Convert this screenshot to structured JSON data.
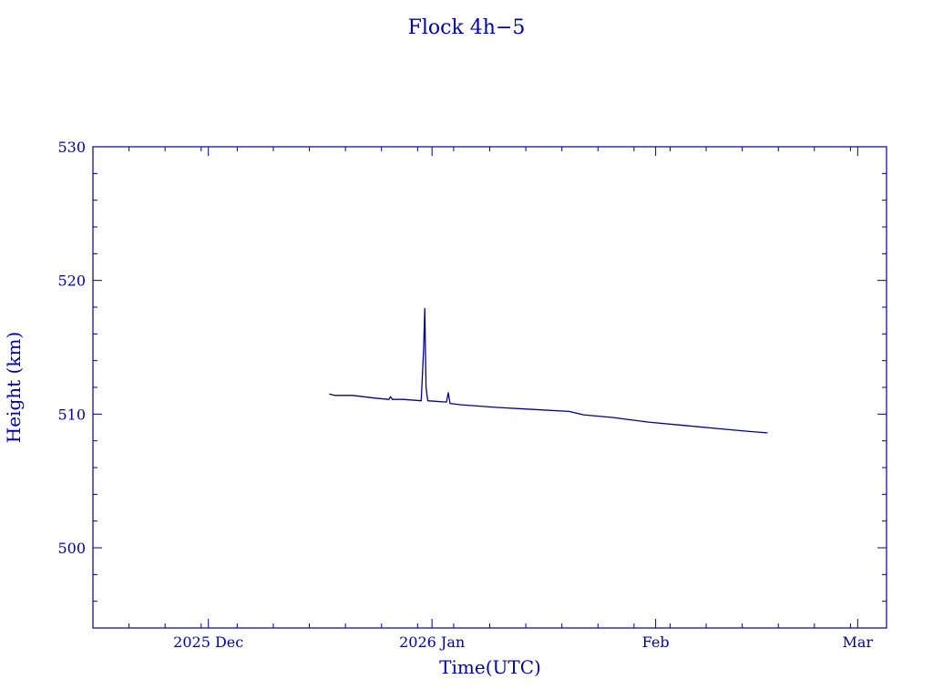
{
  "chart_data": {
    "type": "line",
    "title": "Flock 4h−5",
    "xlabel": "Time(UTC)",
    "ylabel": "Height (km)",
    "x_type": "date",
    "xlim": [
      "2025-11-15",
      "2026-03-05"
    ],
    "ylim": [
      494,
      530
    ],
    "y_ticks": [
      500,
      510,
      520,
      530
    ],
    "y_minor_step": 2,
    "x_ticks": [
      {
        "date": "2025-12-01",
        "label": "2025 Dec"
      },
      {
        "date": "2026-01-01",
        "label": "2026 Jan"
      },
      {
        "date": "2026-02-01",
        "label": "Feb"
      },
      {
        "date": "2026-03-01",
        "label": "Mar"
      }
    ],
    "x_minor_step_days": 5,
    "grid": false,
    "series": [
      {
        "color": "#000088",
        "points": [
          [
            "2025-12-17T18:00",
            511.5
          ],
          [
            "2025-12-18T12:00",
            511.4
          ],
          [
            "2025-12-21T00:00",
            511.4
          ],
          [
            "2025-12-24T00:00",
            511.2
          ],
          [
            "2025-12-26T00:00",
            511.1
          ],
          [
            "2025-12-26T06:00",
            511.3
          ],
          [
            "2025-12-26T12:00",
            511.1
          ],
          [
            "2025-12-28T00:00",
            511.1
          ],
          [
            "2025-12-30T12:00",
            511.0
          ],
          [
            "2025-12-30T20:00",
            514.8
          ],
          [
            "2025-12-31T00:00",
            517.9
          ],
          [
            "2025-12-31T04:00",
            512.0
          ],
          [
            "2025-12-31T10:00",
            511.0
          ],
          [
            "2026-01-03T00:00",
            510.9
          ],
          [
            "2026-01-03T06:00",
            511.6
          ],
          [
            "2026-01-03T12:00",
            510.8
          ],
          [
            "2026-01-05T00:00",
            510.7
          ],
          [
            "2026-01-10T00:00",
            510.5
          ],
          [
            "2026-01-15T00:00",
            510.35
          ],
          [
            "2026-01-20T00:00",
            510.2
          ],
          [
            "2026-01-22T00:00",
            509.95
          ],
          [
            "2026-01-26T00:00",
            509.75
          ],
          [
            "2026-01-31T00:00",
            509.4
          ],
          [
            "2026-02-05T00:00",
            509.15
          ],
          [
            "2026-02-10T00:00",
            508.9
          ],
          [
            "2026-02-14T00:00",
            508.7
          ],
          [
            "2026-02-16T12:00",
            508.6
          ]
        ]
      }
    ]
  }
}
